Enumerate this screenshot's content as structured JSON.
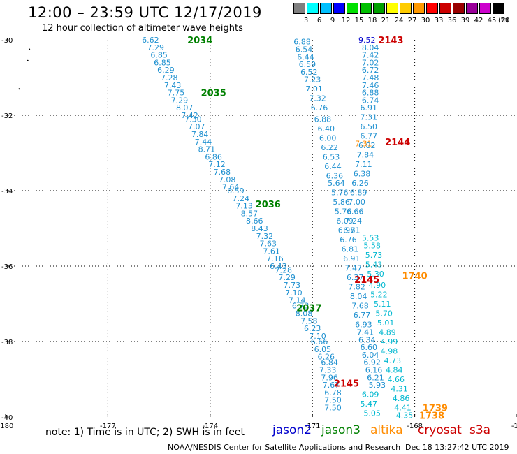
{
  "header": {
    "title": "12:00 – 23:59 UTC 12/17/2019",
    "subtitle": "12 hour collection of altimeter wave heights"
  },
  "legend": {
    "unit": "(ft)",
    "colors": [
      "#808080",
      "#00ffff",
      "#00c0ff",
      "#0000ff",
      "#00e000",
      "#00c000",
      "#00a000",
      "#ffff00",
      "#ffcc00",
      "#ff9900",
      "#ff0000",
      "#cc0000",
      "#990000",
      "#990099",
      "#cc00cc",
      "#000000"
    ],
    "labels": [
      "3",
      "6",
      "9",
      "12",
      "15",
      "18",
      "21",
      "24",
      "27",
      "30",
      "33",
      "36",
      "39",
      "42",
      "45",
      "70"
    ]
  },
  "footer": {
    "note": "note: 1) Time is in UTC; 2) SWH is in feet",
    "satellites": [
      {
        "name": "jason2",
        "color": "#0000cc"
      },
      {
        "name": "jason3",
        "color": "#008000"
      },
      {
        "name": "altika",
        "color": "#ff8c00"
      },
      {
        "name": "cryosat",
        "color": "#cc0000"
      },
      {
        "name": "s3a",
        "color": "#cc0000"
      }
    ],
    "credit": "NOAA/NESDIS Center for Satellite Applications and Research",
    "timestamp": "Dec 18 13:27:42 UTC 2019"
  },
  "chart_data": {
    "type": "scatter",
    "xlim": [
      -180,
      -165
    ],
    "ylim": [
      -40,
      -30
    ],
    "x_ticks": [
      "-180",
      "-177",
      "-174",
      "-171",
      "-168",
      "-16"
    ],
    "y_ticks": [
      "-30",
      "-32",
      "-34",
      "-36",
      "-38",
      "-40"
    ],
    "grid": true,
    "pass_labels": [
      {
        "text": "2034",
        "lon": -174.3,
        "lat": -30.0,
        "color": "#008000"
      },
      {
        "text": "2035",
        "lon": -173.9,
        "lat": -31.4,
        "color": "#008000"
      },
      {
        "text": "2036",
        "lon": -172.3,
        "lat": -34.35,
        "color": "#008000"
      },
      {
        "text": "2037",
        "lon": -171.1,
        "lat": -37.1,
        "color": "#008000"
      },
      {
        "text": "2143",
        "lon": -168.7,
        "lat": -30.0,
        "color": "#cc0000"
      },
      {
        "text": "2144",
        "lon": -168.5,
        "lat": -32.7,
        "color": "#cc0000"
      },
      {
        "text": "2145",
        "lon": -169.4,
        "lat": -36.35,
        "color": "#cc0000"
      },
      {
        "text": "2145",
        "lon": -170.0,
        "lat": -39.1,
        "color": "#cc0000"
      },
      {
        "text": "1740",
        "lon": -168.0,
        "lat": -36.25,
        "color": "#ff8c00"
      },
      {
        "text": "1739",
        "lon": -167.4,
        "lat": -39.75,
        "color": "#ff8c00"
      },
      {
        "text": "1738",
        "lon": -167.5,
        "lat": -39.95,
        "color": "#ff8c00"
      }
    ],
    "extra_labels": [
      {
        "text": "9.52",
        "lon": -169.4,
        "lat": -30.0,
        "color": "#0000cc"
      },
      {
        "text": "7.31",
        "lon": -169.5,
        "lat": -32.75,
        "color": "#ff8c00"
      }
    ],
    "series": [
      {
        "name": "jason3 pass 2034-2037",
        "color": "#1e90d0",
        "points": [
          {
            "lon": -175.75,
            "lat": -30.0,
            "v": "6.62"
          },
          {
            "lon": -175.6,
            "lat": -30.2,
            "v": "7.29"
          },
          {
            "lon": -175.5,
            "lat": -30.4,
            "v": "6.85"
          },
          {
            "lon": -175.4,
            "lat": -30.6,
            "v": "6.85"
          },
          {
            "lon": -175.3,
            "lat": -30.8,
            "v": "6.29"
          },
          {
            "lon": -175.2,
            "lat": -31.0,
            "v": "7.28"
          },
          {
            "lon": -175.1,
            "lat": -31.2,
            "v": "7.43"
          },
          {
            "lon": -175.0,
            "lat": -31.4,
            "v": "7.75"
          },
          {
            "lon": -174.9,
            "lat": -31.6,
            "v": "7.29"
          },
          {
            "lon": -174.75,
            "lat": -31.8,
            "v": "8.07"
          },
          {
            "lon": -174.6,
            "lat": -32.0,
            "v": "7.42"
          },
          {
            "lon": -174.5,
            "lat": -32.1,
            "v": "7.30"
          },
          {
            "lon": -174.4,
            "lat": -32.3,
            "v": "7.07"
          },
          {
            "lon": -174.3,
            "lat": -32.5,
            "v": "7.84"
          },
          {
            "lon": -174.2,
            "lat": -32.7,
            "v": "7.44"
          },
          {
            "lon": -174.1,
            "lat": -32.9,
            "v": "8.71"
          },
          {
            "lon": -173.9,
            "lat": -33.1,
            "v": "6.86"
          },
          {
            "lon": -173.8,
            "lat": -33.3,
            "v": "7.12"
          },
          {
            "lon": -173.65,
            "lat": -33.5,
            "v": "7.68"
          },
          {
            "lon": -173.5,
            "lat": -33.7,
            "v": "7.08"
          },
          {
            "lon": -173.4,
            "lat": -33.9,
            "v": "7.64"
          },
          {
            "lon": -173.25,
            "lat": -34.0,
            "v": "6.59"
          },
          {
            "lon": -173.1,
            "lat": -34.2,
            "v": "7.24"
          },
          {
            "lon": -173.0,
            "lat": -34.4,
            "v": "7.13"
          },
          {
            "lon": -172.85,
            "lat": -34.6,
            "v": "8.57"
          },
          {
            "lon": -172.7,
            "lat": -34.8,
            "v": "8.66"
          },
          {
            "lon": -172.55,
            "lat": -35.0,
            "v": "8.43"
          },
          {
            "lon": -172.4,
            "lat": -35.2,
            "v": "7.32"
          },
          {
            "lon": -172.3,
            "lat": -35.4,
            "v": "7.63"
          },
          {
            "lon": -172.2,
            "lat": -35.6,
            "v": "7.61"
          },
          {
            "lon": -172.1,
            "lat": -35.8,
            "v": "7.16"
          },
          {
            "lon": -172.0,
            "lat": -36.0,
            "v": "6.43"
          },
          {
            "lon": -171.85,
            "lat": -36.1,
            "v": "7.28"
          },
          {
            "lon": -171.75,
            "lat": -36.3,
            "v": "7.29"
          },
          {
            "lon": -171.6,
            "lat": -36.5,
            "v": "7.73"
          },
          {
            "lon": -171.55,
            "lat": -36.7,
            "v": "7.10"
          },
          {
            "lon": -171.45,
            "lat": -36.9,
            "v": "7.14"
          },
          {
            "lon": -171.35,
            "lat": -37.05,
            "v": "6.73"
          },
          {
            "lon": -171.25,
            "lat": -37.25,
            "v": "8.08"
          },
          {
            "lon": -171.1,
            "lat": -37.45,
            "v": "7.58"
          },
          {
            "lon": -171.0,
            "lat": -37.65,
            "v": "6.23"
          },
          {
            "lon": -170.85,
            "lat": -37.85,
            "v": "7.10"
          },
          {
            "lon": -170.8,
            "lat": -38.0,
            "v": "6.66"
          },
          {
            "lon": -170.7,
            "lat": -38.2,
            "v": "6.05"
          },
          {
            "lon": -170.6,
            "lat": -38.4,
            "v": "6.26"
          },
          {
            "lon": -170.5,
            "lat": -38.55,
            "v": "6.84"
          },
          {
            "lon": -170.55,
            "lat": -38.75,
            "v": "7.33"
          },
          {
            "lon": -170.5,
            "lat": -38.95,
            "v": "7.96"
          },
          {
            "lon": -170.45,
            "lat": -39.15,
            "v": "7.67"
          },
          {
            "lon": -170.4,
            "lat": -39.35,
            "v": "6.78"
          },
          {
            "lon": -170.4,
            "lat": -39.55,
            "v": "7.50"
          },
          {
            "lon": -170.4,
            "lat": -39.75,
            "v": "7.50"
          }
        ]
      },
      {
        "name": "pass 2143-2145 descending",
        "color": "#1e90d0",
        "points": [
          {
            "lon": -171.3,
            "lat": -30.05,
            "v": "6.88"
          },
          {
            "lon": -171.25,
            "lat": -30.25,
            "v": "6.54"
          },
          {
            "lon": -171.2,
            "lat": -30.45,
            "v": "6.44"
          },
          {
            "lon": -171.15,
            "lat": -30.65,
            "v": "6.59"
          },
          {
            "lon": -171.1,
            "lat": -30.85,
            "v": "6.52"
          },
          {
            "lon": -171.0,
            "lat": -31.05,
            "v": "7.23"
          },
          {
            "lon": -170.95,
            "lat": -31.3,
            "v": "7.01"
          },
          {
            "lon": -170.85,
            "lat": -31.55,
            "v": "7.32"
          },
          {
            "lon": -170.8,
            "lat": -31.8,
            "v": "6.76"
          },
          {
            "lon": -170.7,
            "lat": -32.1,
            "v": "6.88"
          },
          {
            "lon": -170.6,
            "lat": -32.35,
            "v": "6.40"
          },
          {
            "lon": -170.55,
            "lat": -32.6,
            "v": "6.00"
          },
          {
            "lon": -170.5,
            "lat": -32.85,
            "v": "6.22"
          },
          {
            "lon": -170.45,
            "lat": -33.1,
            "v": "6.53"
          },
          {
            "lon": -170.4,
            "lat": -33.35,
            "v": "6.44"
          },
          {
            "lon": -170.35,
            "lat": -33.6,
            "v": "6.36"
          },
          {
            "lon": -170.3,
            "lat": -33.8,
            "v": "5.64"
          },
          {
            "lon": -170.2,
            "lat": -34.05,
            "v": "5.76"
          },
          {
            "lon": -170.15,
            "lat": -34.3,
            "v": "5.86"
          },
          {
            "lon": -170.1,
            "lat": -34.55,
            "v": "5.76"
          },
          {
            "lon": -170.05,
            "lat": -34.8,
            "v": "6.09"
          },
          {
            "lon": -170.0,
            "lat": -35.05,
            "v": "6.97"
          },
          {
            "lon": -169.95,
            "lat": -35.3,
            "v": "6.76"
          },
          {
            "lon": -169.9,
            "lat": -35.55,
            "v": "6.81"
          },
          {
            "lon": -169.85,
            "lat": -35.8,
            "v": "6.91"
          },
          {
            "lon": -169.8,
            "lat": -36.05,
            "v": "7.47"
          },
          {
            "lon": -169.75,
            "lat": -36.3,
            "v": "6.37"
          },
          {
            "lon": -169.7,
            "lat": -36.55,
            "v": "7.82"
          },
          {
            "lon": -169.65,
            "lat": -36.8,
            "v": "8.04"
          },
          {
            "lon": -169.6,
            "lat": -37.05,
            "v": "7.68"
          },
          {
            "lon": -169.55,
            "lat": -37.3,
            "v": "6.77"
          },
          {
            "lon": -169.5,
            "lat": -37.55,
            "v": "6.93"
          },
          {
            "lon": -169.45,
            "lat": -37.75,
            "v": "7.41"
          },
          {
            "lon": -169.4,
            "lat": -37.95,
            "v": "6.34"
          },
          {
            "lon": -169.35,
            "lat": -38.15,
            "v": "6.60"
          },
          {
            "lon": -169.3,
            "lat": -38.35,
            "v": "6.04"
          },
          {
            "lon": -169.25,
            "lat": -38.55,
            "v": "6.92"
          },
          {
            "lon": -169.2,
            "lat": -38.75,
            "v": "6.16"
          },
          {
            "lon": -169.15,
            "lat": -38.95,
            "v": "6.21"
          },
          {
            "lon": -169.1,
            "lat": -39.15,
            "v": "5.93"
          }
        ]
      },
      {
        "name": "pass 2143 upper",
        "color": "#1e90d0",
        "points": [
          {
            "lon": -169.3,
            "lat": -30.2,
            "v": "8.04"
          },
          {
            "lon": -169.3,
            "lat": -30.4,
            "v": "7.42"
          },
          {
            "lon": -169.3,
            "lat": -30.6,
            "v": "7.02"
          },
          {
            "lon": -169.3,
            "lat": -30.8,
            "v": "6.72"
          },
          {
            "lon": -169.3,
            "lat": -31.0,
            "v": "7.48"
          },
          {
            "lon": -169.3,
            "lat": -31.2,
            "v": "7.46"
          },
          {
            "lon": -169.3,
            "lat": -31.4,
            "v": "6.88"
          },
          {
            "lon": -169.3,
            "lat": -31.6,
            "v": "6.74"
          },
          {
            "lon": -169.35,
            "lat": -31.8,
            "v": "6.91"
          },
          {
            "lon": -169.35,
            "lat": -32.05,
            "v": "7.31"
          },
          {
            "lon": -169.35,
            "lat": -32.3,
            "v": "6.50"
          },
          {
            "lon": -169.35,
            "lat": -32.55,
            "v": "6.77"
          },
          {
            "lon": -169.4,
            "lat": -32.8,
            "v": "6.82"
          },
          {
            "lon": -169.45,
            "lat": -33.05,
            "v": "7.84"
          },
          {
            "lon": -169.5,
            "lat": -33.3,
            "v": "7.11"
          },
          {
            "lon": -169.55,
            "lat": -33.55,
            "v": "6.38"
          },
          {
            "lon": -169.6,
            "lat": -33.8,
            "v": "6.26"
          },
          {
            "lon": -169.65,
            "lat": -34.05,
            "v": "6.89"
          },
          {
            "lon": -169.7,
            "lat": -34.3,
            "v": "7.00"
          },
          {
            "lon": -169.75,
            "lat": -34.55,
            "v": "6.66"
          },
          {
            "lon": -169.8,
            "lat": -34.8,
            "v": "7.24"
          },
          {
            "lon": -169.85,
            "lat": -35.05,
            "v": "6.81"
          }
        ]
      },
      {
        "name": "pass 2145 lower cyan",
        "color": "#00b8d0",
        "points": [
          {
            "lon": -169.3,
            "lat": -35.25,
            "v": "5.53"
          },
          {
            "lon": -169.25,
            "lat": -35.45,
            "v": "5.58"
          },
          {
            "lon": -169.2,
            "lat": -35.7,
            "v": "5.73"
          },
          {
            "lon": -169.2,
            "lat": -35.95,
            "v": "5.43"
          },
          {
            "lon": -169.15,
            "lat": -36.2,
            "v": "5.30"
          },
          {
            "lon": -169.1,
            "lat": -36.5,
            "v": "4.90"
          },
          {
            "lon": -169.05,
            "lat": -36.75,
            "v": "5.22"
          },
          {
            "lon": -168.95,
            "lat": -37.0,
            "v": "5.11"
          },
          {
            "lon": -168.9,
            "lat": -37.25,
            "v": "5.70"
          },
          {
            "lon": -168.85,
            "lat": -37.5,
            "v": "5.01"
          },
          {
            "lon": -168.8,
            "lat": -37.75,
            "v": "4.89"
          },
          {
            "lon": -168.75,
            "lat": -38.0,
            "v": "4.99"
          },
          {
            "lon": -168.75,
            "lat": -38.25,
            "v": "4.98"
          },
          {
            "lon": -168.65,
            "lat": -38.5,
            "v": "4.73"
          },
          {
            "lon": -168.6,
            "lat": -38.75,
            "v": "4.84"
          },
          {
            "lon": -168.55,
            "lat": -39.0,
            "v": "4.66"
          },
          {
            "lon": -168.45,
            "lat": -39.25,
            "v": "4.31"
          },
          {
            "lon": -168.4,
            "lat": -39.5,
            "v": "4.86"
          },
          {
            "lon": -168.35,
            "lat": -39.75,
            "v": "4.41"
          },
          {
            "lon": -168.3,
            "lat": -39.95,
            "v": "4.35"
          },
          {
            "lon": -169.3,
            "lat": -39.4,
            "v": "6.09"
          },
          {
            "lon": -169.35,
            "lat": -39.65,
            "v": "5.47"
          },
          {
            "lon": -169.25,
            "lat": -39.9,
            "v": "5.05"
          }
        ]
      }
    ]
  }
}
